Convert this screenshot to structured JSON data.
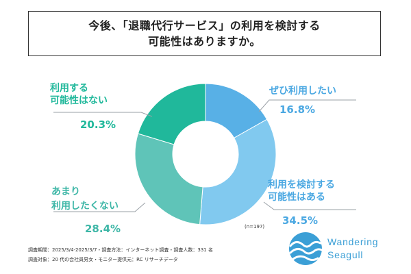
{
  "title": {
    "line1": "今後、「退職代行サービス」の利用を検討する",
    "line2": "可能性はありますか。"
  },
  "chart_data": {
    "type": "pie",
    "categories": [
      "ぜひ利用したい",
      "利用を検討する可能性はある",
      "あまり利用したくない",
      "利用する可能性はない"
    ],
    "values": [
      16.8,
      34.5,
      28.4,
      20.3
    ],
    "unit": "%",
    "colors": [
      "#58b0e6",
      "#81c9ef",
      "#5fc4b8",
      "#20b89b"
    ],
    "donut": true,
    "sample_size": "(n=197)"
  },
  "labels": [
    {
      "line1": "ぜひ利用したい",
      "line2": "",
      "pct": "16.8%"
    },
    {
      "line1": "利用を検討する",
      "line2": "可能性はある",
      "pct": "34.5%"
    },
    {
      "line1": "あまり",
      "line2": "利用したくない",
      "pct": "28.4%"
    },
    {
      "line1": "利用する",
      "line2": "可能性はない",
      "pct": "20.3%"
    }
  ],
  "footnote": {
    "line1": "調査期間：2025/3/4-2025/3/7・調査方法：インターネット調査・調査人数：331 名",
    "line2": "調査対象：20 代の会社員男女・モニター提供元：RC リサーチデータ"
  },
  "logo": {
    "line1": "Wandering",
    "line2": "Seagull",
    "color": "#3b9fd6"
  }
}
